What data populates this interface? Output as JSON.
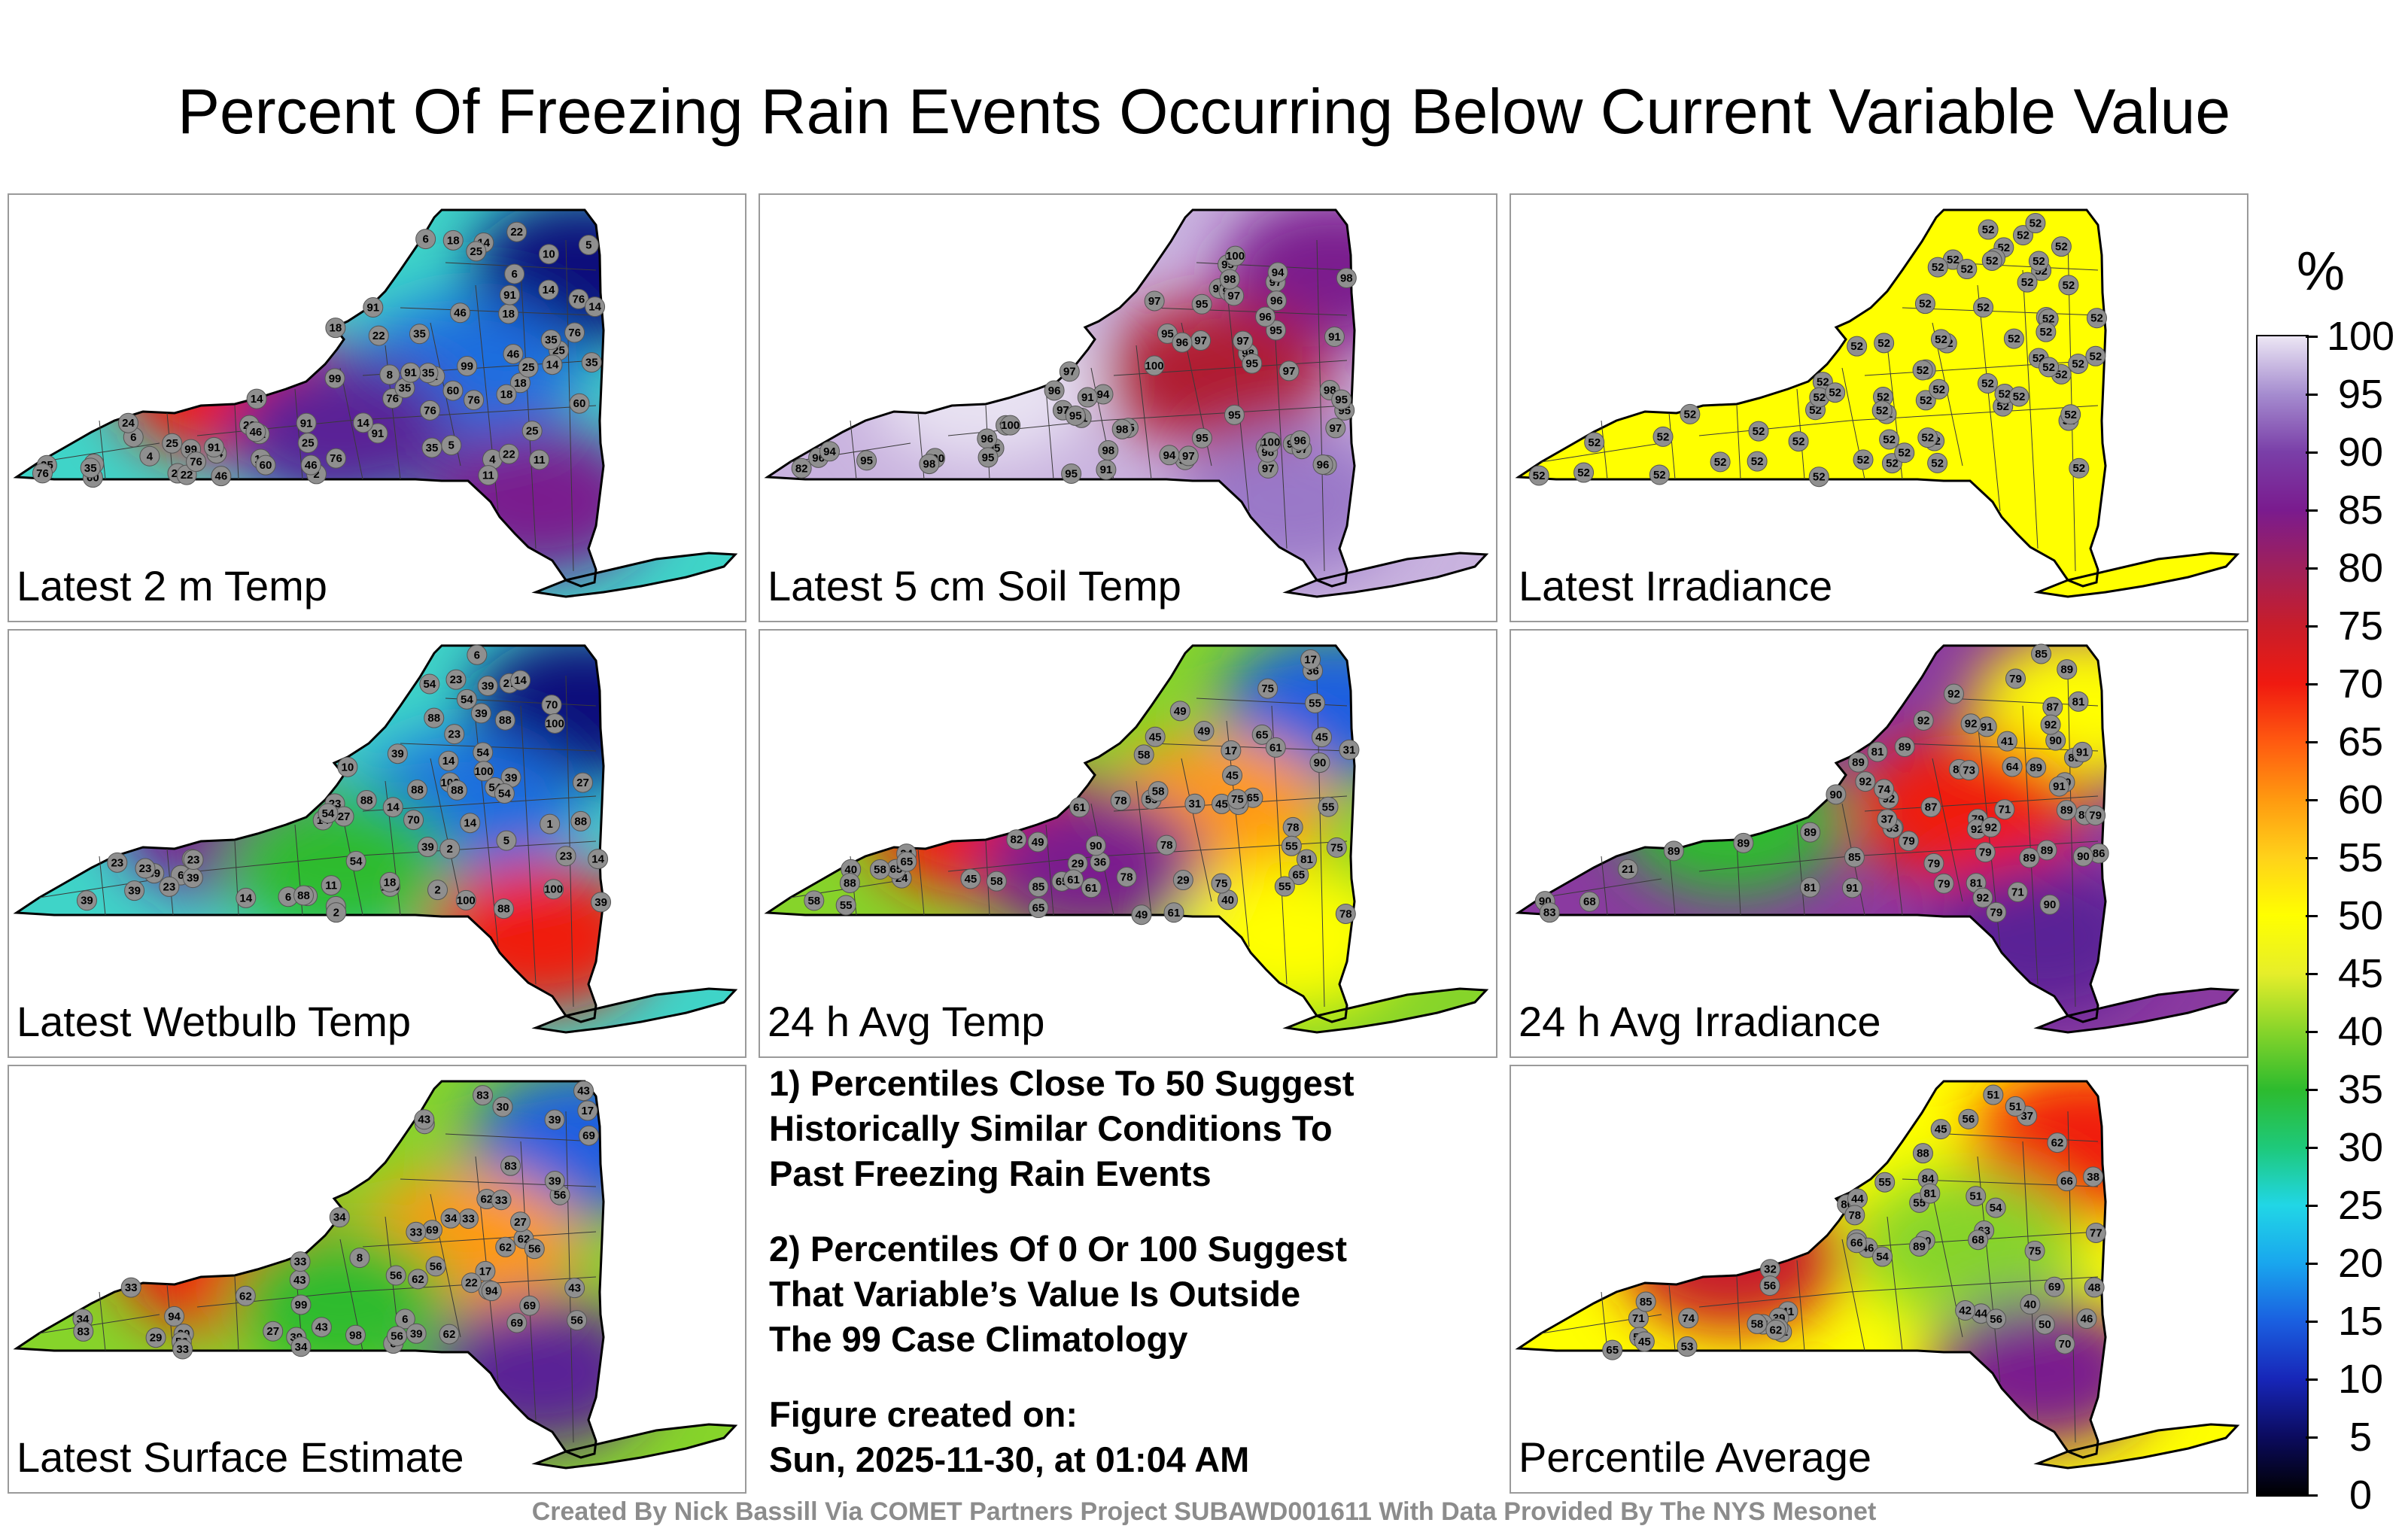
{
  "title": "Percent Of Freezing Rain Events Occurring Below Current Variable Value",
  "colorbar": {
    "unit": "%",
    "ticks": [
      "100",
      "95",
      "90",
      "85",
      "80",
      "75",
      "70",
      "65",
      "60",
      "55",
      "50",
      "45",
      "40",
      "35",
      "30",
      "25",
      "20",
      "15",
      "10",
      "5",
      "0"
    ],
    "colors": [
      "#000000",
      "#0b0b5e",
      "#1726b8",
      "#1a5fe0",
      "#19a6ee",
      "#21d6e6",
      "#1ec97a",
      "#2dbb2e",
      "#86d42a",
      "#e6ee2a",
      "#ffff00",
      "#ffd21a",
      "#ff9a10",
      "#ff5a10",
      "#f01a10",
      "#c81d2a",
      "#a0205a",
      "#7a1b8e",
      "#7a3fa8",
      "#a58ccf",
      "#ece6f4"
    ]
  },
  "panels": [
    {
      "label": "Latest 2 m Temp",
      "bg": "#3fd4c8",
      "blobs": [
        {
          "c": "#0b0b7a",
          "v": 5
        },
        {
          "c": "#1f6ee0",
          "v": 18
        },
        {
          "c": "#f01a10",
          "v": 76
        },
        {
          "c": "#7a1b8e",
          "v": 91
        },
        {
          "c": "#5a2096",
          "v": 99
        }
      ],
      "values": [
        "11",
        "10",
        "1",
        "6",
        "2",
        "8",
        "14",
        "22",
        "6",
        "4",
        "25",
        "35",
        "2",
        "76",
        "4",
        "76",
        "25",
        "22",
        "18",
        "6",
        "5",
        "35",
        "91",
        "24",
        "60",
        "76",
        "91",
        "14",
        "18",
        "35",
        "60",
        "14",
        "99",
        "91",
        "35",
        "25",
        "22",
        "18",
        "14",
        "18",
        "5",
        "46",
        "14",
        "25",
        "91",
        "76",
        "18",
        "60",
        "22",
        "35",
        "14",
        "25",
        "25",
        "46",
        "22",
        "22",
        "46",
        "11",
        "35",
        "22",
        "14",
        "46",
        "76",
        "25",
        "60",
        "14",
        "76",
        "91",
        "35",
        "46",
        "91",
        "76",
        "99",
        "99",
        "76"
      ]
    },
    {
      "label": "Latest 5 cm Soil Temp",
      "bg": "#c9b3df",
      "blobs": [
        {
          "c": "#7a1b8e",
          "v": 91
        },
        {
          "c": "#b01a30",
          "v": 72
        },
        {
          "c": "#e8e2f2",
          "v": 100
        },
        {
          "c": "#9a78c8",
          "v": 95
        }
      ],
      "values": [
        "95",
        "95",
        "96",
        "91",
        "94",
        "95",
        "95",
        "98",
        "95",
        "91",
        "97",
        "97",
        "91",
        "72",
        "91",
        "98",
        "97",
        "97",
        "97",
        "95",
        "94",
        "96",
        "96",
        "97",
        "98",
        "98",
        "96",
        "95",
        "95",
        "97",
        "98",
        "96",
        "97",
        "95",
        "95",
        "97",
        "96",
        "95",
        "98",
        "100",
        "94",
        "95",
        "97",
        "96",
        "95",
        "98",
        "95",
        "95",
        "82",
        "97",
        "98",
        "98",
        "100",
        "97",
        "100",
        "94",
        "96",
        "98",
        "97",
        "100",
        "100",
        "96",
        "98",
        "95"
      ]
    },
    {
      "label": "Latest Irradiance",
      "bg": "#ffff00",
      "blobs": [],
      "values": [
        "52",
        "52",
        "52",
        "52",
        "52",
        "52",
        "52",
        "52",
        "52",
        "52",
        "52",
        "52",
        "52",
        "52",
        "52",
        "52",
        "52",
        "52",
        "52",
        "52",
        "52",
        "52",
        "52",
        "52",
        "52",
        "52",
        "52",
        "52",
        "52",
        "52",
        "52",
        "52",
        "52",
        "52",
        "52",
        "52",
        "52",
        "52",
        "52",
        "52",
        "52",
        "52",
        "52",
        "52",
        "52",
        "52",
        "52",
        "52",
        "52",
        "52",
        "52",
        "52",
        "52",
        "52",
        "52",
        "52",
        "52",
        "52",
        "52",
        "52",
        "52",
        "52",
        "52",
        "52",
        "52",
        "52"
      ]
    },
    {
      "label": "Latest Wetbulb Temp",
      "bg": "#3fd4c8",
      "blobs": [
        {
          "c": "#0b0b7a",
          "v": 2
        },
        {
          "c": "#1f6ee0",
          "v": 14
        },
        {
          "c": "#7a1b8e",
          "v": 88
        },
        {
          "c": "#f01a10",
          "v": 100
        },
        {
          "c": "#2dbb2e",
          "v": 39
        }
      ],
      "values": [
        "10",
        "2",
        "6",
        "1",
        "8",
        "2",
        "14",
        "39",
        "2",
        "88",
        "88",
        "23",
        "39",
        "6",
        "14",
        "6",
        "5",
        "27",
        "100",
        "70",
        "88",
        "6",
        "14",
        "54",
        "70",
        "39",
        "23",
        "14",
        "23",
        "100",
        "88",
        "39",
        "54",
        "23",
        "14",
        "39",
        "27",
        "23",
        "23",
        "14",
        "54",
        "39",
        "14",
        "54",
        "88",
        "39",
        "23",
        "23",
        "11",
        "18",
        "27",
        "39",
        "39",
        "54",
        "54",
        "39",
        "88",
        "100",
        "54",
        "100",
        "100",
        "100",
        "88",
        "88",
        "88"
      ]
    },
    {
      "label": "24 h Avg Temp",
      "bg": "#86d42a",
      "blobs": [
        {
          "c": "#1a5fe0",
          "v": 17
        },
        {
          "c": "#ff9a10",
          "v": 65
        },
        {
          "c": "#f01a10",
          "v": 78
        },
        {
          "c": "#ffff00",
          "v": 55
        },
        {
          "c": "#7a1b8e",
          "v": 90
        }
      ],
      "values": [
        "40",
        "36",
        "49",
        "29",
        "17",
        "24",
        "61",
        "45",
        "17",
        "55",
        "24",
        "61",
        "29",
        "31",
        "78",
        "65",
        "65",
        "45",
        "36",
        "65",
        "55",
        "58",
        "55",
        "75",
        "75",
        "61",
        "65",
        "45",
        "65",
        "65",
        "49",
        "45",
        "58",
        "55",
        "55",
        "58",
        "40",
        "45",
        "61",
        "49",
        "58",
        "75",
        "78",
        "55",
        "58",
        "31",
        "49",
        "61",
        "78",
        "65",
        "55",
        "82",
        "75",
        "78",
        "78",
        "81",
        "90",
        "88",
        "90",
        "85"
      ]
    },
    {
      "label": "24 h Avg Irradiance",
      "bg": "#8a3aa0",
      "blobs": [
        {
          "c": "#ffff00",
          "v": 50
        },
        {
          "c": "#f01a10",
          "v": 79
        },
        {
          "c": "#2dbb2e",
          "v": 13
        },
        {
          "c": "#5a2096",
          "v": 90
        }
      ],
      "values": [
        "87",
        "87",
        "83",
        "89",
        "89",
        "90",
        "90",
        "85",
        "83",
        "89",
        "92",
        "13",
        "90",
        "89",
        "71",
        "79",
        "89",
        "83",
        "81",
        "85",
        "79",
        "91",
        "90",
        "79",
        "83",
        "81",
        "79",
        "86",
        "89",
        "90",
        "89",
        "89",
        "74",
        "81",
        "90",
        "79",
        "91",
        "79",
        "92",
        "73",
        "79",
        "92",
        "89",
        "81",
        "68",
        "64",
        "71",
        "89",
        "37",
        "21",
        "79",
        "41",
        "92",
        "91",
        "89",
        "92",
        "92",
        "92",
        "92",
        "92",
        "91"
      ]
    }
  ],
  "panel_surface": {
    "label": "Latest Surface Estimate",
    "bg": "#86d42a",
    "blobs": [
      {
        "c": "#1a5fe0",
        "v": 17
      },
      {
        "c": "#ff9a10",
        "v": 62
      },
      {
        "c": "#f01a10",
        "v": 83
      },
      {
        "c": "#5a2096",
        "v": 94
      },
      {
        "c": "#2dbb2e",
        "v": 39
      }
    ],
    "values": [
      "29",
      "6",
      "17",
      "30",
      "8",
      "27",
      "34",
      "17",
      "30",
      "8",
      "39",
      "33",
      "62",
      "56",
      "22",
      "17",
      "27",
      "62",
      "83",
      "69",
      "56",
      "33",
      "39",
      "62",
      "69",
      "83",
      "43",
      "34",
      "33",
      "33",
      "56",
      "43",
      "33",
      "34",
      "39",
      "56",
      "62",
      "39",
      "34",
      "43",
      "43",
      "33",
      "56",
      "62",
      "43",
      "34",
      "56",
      "83",
      "69",
      "62",
      "56",
      "94",
      "99",
      "98",
      "69",
      "94"
    ]
  },
  "panel_average": {
    "label": "Percentile Average",
    "bg": "#ffff00",
    "blobs": [
      {
        "c": "#f01a10",
        "v": 75
      },
      {
        "c": "#86d42a",
        "v": 45
      },
      {
        "c": "#c81d2a",
        "v": 84
      },
      {
        "c": "#7a1b8e",
        "v": 89
      }
    ],
    "values": [
      "48",
      "46",
      "38",
      "66",
      "40",
      "45",
      "51",
      "56",
      "41",
      "39",
      "37",
      "44",
      "75",
      "51",
      "32",
      "51",
      "42",
      "70",
      "66",
      "48",
      "74",
      "69",
      "80",
      "71",
      "81",
      "54",
      "75",
      "53",
      "50",
      "63",
      "58",
      "55",
      "65",
      "56",
      "62",
      "51",
      "60",
      "46",
      "45",
      "55",
      "54",
      "51",
      "62",
      "44",
      "77",
      "68",
      "84",
      "78",
      "56",
      "89",
      "81",
      "88",
      "85"
    ]
  },
  "notes": {
    "n1_l1": "1) Percentiles Close To 50 Suggest",
    "n1_l2": "Historically Similar Conditions To",
    "n1_l3": "Past Freezing Rain Events",
    "n2_l1": "2) Percentiles Of 0 Or 100 Suggest",
    "n2_l2": "That Variable’s Value Is Outside",
    "n2_l3": "The 99 Case Climatology",
    "created_l1": "Figure created on:",
    "created_l2": "Sun, 2025-11-30, at 01:04 AM"
  },
  "footer": "Created By Nick Bassill Via COMET Partners Project SUBAWD001611 With Data Provided By The NYS Mesonet"
}
